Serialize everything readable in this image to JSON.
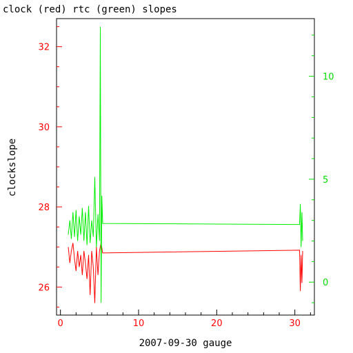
{
  "chart_data": {
    "type": "line",
    "title": "clock (red) rtc (green) slopes",
    "xlabel": "2007-09-30 gauge",
    "ylabel_left": "clockslope",
    "xlim": [
      -0.5,
      32.5
    ],
    "ylim_left": [
      25.3,
      32.7
    ],
    "ylim_right": [
      -1.6,
      12.8
    ],
    "x_ticks": [
      0,
      10,
      20,
      30
    ],
    "y_left_ticks": [
      26,
      28,
      30,
      32
    ],
    "y_right_ticks": [
      0,
      5,
      10
    ],
    "colors": {
      "red_series": "#ff0000",
      "green_series": "#00ee00",
      "frame": "#000000"
    },
    "series": [
      {
        "axis": "left",
        "color": "#ff0000",
        "x": [
          1.0,
          1.2,
          1.4,
          1.6,
          1.8,
          2.0,
          2.2,
          2.4,
          2.6,
          2.8,
          3.0,
          3.2,
          3.4,
          3.6,
          3.8,
          4.0,
          4.2,
          4.4,
          4.6,
          4.8,
          5.0,
          5.2,
          5.4,
          30.6,
          30.7,
          30.8,
          30.9,
          31.0
        ],
        "y": [
          27.0,
          26.6,
          26.9,
          27.1,
          26.7,
          26.4,
          26.9,
          26.5,
          26.8,
          26.3,
          26.9,
          26.6,
          26.2,
          26.8,
          25.8,
          26.9,
          26.5,
          25.6,
          27.0,
          26.3,
          26.9,
          27.1,
          26.85,
          26.92,
          25.9,
          26.8,
          26.1,
          26.9
        ]
      },
      {
        "axis": "right",
        "color": "#00ee00",
        "x": [
          1.0,
          1.2,
          1.4,
          1.6,
          1.8,
          2.0,
          2.2,
          2.4,
          2.6,
          2.8,
          3.0,
          3.2,
          3.4,
          3.6,
          3.8,
          4.0,
          4.2,
          4.4,
          4.6,
          4.8,
          5.0,
          5.1,
          5.2,
          5.3,
          5.4,
          30.6,
          30.7,
          30.8,
          30.9,
          31.0
        ],
        "y": [
          2.3,
          3.0,
          2.1,
          3.4,
          2.2,
          3.5,
          2.0,
          3.2,
          2.3,
          3.6,
          2.0,
          3.4,
          1.8,
          3.7,
          1.9,
          3.0,
          2.2,
          5.1,
          1.7,
          3.3,
          2.0,
          12.4,
          -1.0,
          4.2,
          2.85,
          2.8,
          3.8,
          1.7,
          3.4,
          2.0
        ]
      }
    ]
  }
}
